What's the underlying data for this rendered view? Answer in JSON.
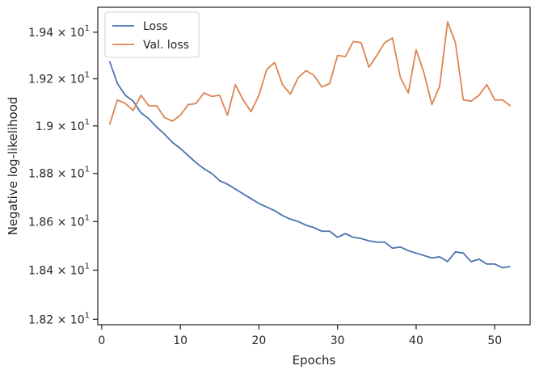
{
  "chart_data": {
    "type": "line",
    "xlabel": "Epochs",
    "ylabel": "Negative log-likelihood",
    "xlim": [
      -0.5,
      54.5
    ],
    "ylim": [
      18.178,
      19.508
    ],
    "yscale": "log",
    "grid": false,
    "legend_position": "upper-left",
    "x_ticks": [
      0,
      10,
      20,
      30,
      40,
      50
    ],
    "y_ticks": [
      {
        "value": 18.2,
        "mantissa": "1.82",
        "base": "10",
        "exp": "1"
      },
      {
        "value": 18.4,
        "mantissa": "1.84",
        "base": "10",
        "exp": "1"
      },
      {
        "value": 18.6,
        "mantissa": "1.86",
        "base": "10",
        "exp": "1"
      },
      {
        "value": 18.8,
        "mantissa": "1.88",
        "base": "10",
        "exp": "1"
      },
      {
        "value": 19.0,
        "mantissa": "1.9",
        "base": "10",
        "exp": "1"
      },
      {
        "value": 19.2,
        "mantissa": "1.92",
        "base": "10",
        "exp": "1"
      },
      {
        "value": 19.4,
        "mantissa": "1.94",
        "base": "10",
        "exp": "1"
      }
    ],
    "x": [
      1,
      2,
      3,
      4,
      5,
      6,
      7,
      8,
      9,
      10,
      11,
      12,
      13,
      14,
      15,
      16,
      17,
      18,
      19,
      20,
      21,
      22,
      23,
      24,
      25,
      26,
      27,
      28,
      29,
      30,
      31,
      32,
      33,
      34,
      35,
      36,
      37,
      38,
      39,
      40,
      41,
      42,
      43,
      44,
      45,
      46,
      47,
      48,
      49,
      50,
      51,
      52
    ],
    "series": [
      {
        "name": "Loss",
        "color": "#4c72b0",
        "values": [
          19.275,
          19.18,
          19.13,
          19.105,
          19.055,
          19.03,
          18.995,
          18.965,
          18.93,
          18.905,
          18.875,
          18.845,
          18.82,
          18.8,
          18.77,
          18.755,
          18.735,
          18.715,
          18.695,
          18.675,
          18.66,
          18.645,
          18.625,
          18.61,
          18.6,
          18.585,
          18.575,
          18.56,
          18.56,
          18.535,
          18.55,
          18.535,
          18.53,
          18.52,
          18.515,
          18.515,
          18.49,
          18.495,
          18.48,
          18.47,
          18.46,
          18.45,
          18.455,
          18.435,
          18.475,
          18.47,
          18.435,
          18.445,
          18.425,
          18.425,
          18.41,
          18.415
        ]
      },
      {
        "name": "Val. loss",
        "color": "#dd8452",
        "values": [
          19.005,
          19.11,
          19.095,
          19.065,
          19.13,
          19.085,
          19.085,
          19.035,
          19.02,
          19.045,
          19.09,
          19.095,
          19.14,
          19.125,
          19.13,
          19.045,
          19.175,
          19.11,
          19.06,
          19.13,
          19.24,
          19.27,
          19.175,
          19.135,
          19.205,
          19.235,
          19.215,
          19.165,
          19.18,
          19.3,
          19.295,
          19.36,
          19.355,
          19.25,
          19.3,
          19.355,
          19.375,
          19.205,
          19.14,
          19.325,
          19.225,
          19.09,
          19.17,
          19.445,
          19.355,
          19.11,
          19.105,
          19.13,
          19.175,
          19.11,
          19.11,
          19.085
        ]
      }
    ]
  }
}
